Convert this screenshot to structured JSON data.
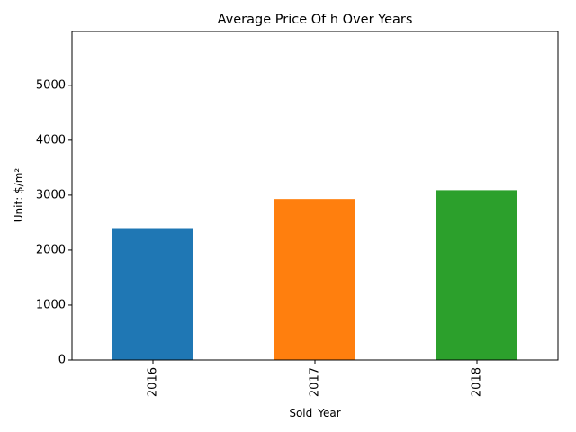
{
  "chart_data": {
    "type": "bar",
    "title": "Average Price Of h Over Years",
    "xlabel": "Sold_Year",
    "ylabel": "Unit: $/m²",
    "categories": [
      "2016",
      "2017",
      "2018"
    ],
    "values": [
      2400,
      2930,
      3090
    ],
    "colors": [
      "#1f77b4",
      "#ff7f0e",
      "#2ca02c"
    ],
    "ylim": [
      0,
      5980
    ],
    "yticks": [
      0,
      1000,
      2000,
      3000,
      4000,
      5000
    ],
    "grid": false,
    "legend": "none"
  }
}
